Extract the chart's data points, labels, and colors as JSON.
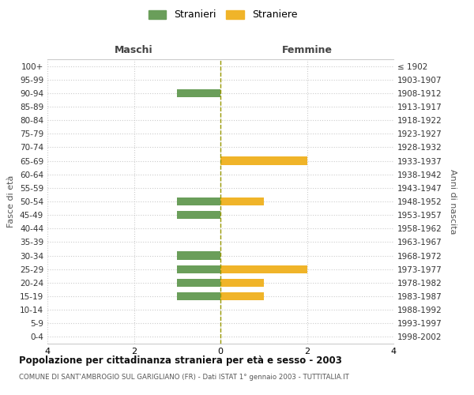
{
  "age_groups": [
    "100+",
    "95-99",
    "90-94",
    "85-89",
    "80-84",
    "75-79",
    "70-74",
    "65-69",
    "60-64",
    "55-59",
    "50-54",
    "45-49",
    "40-44",
    "35-39",
    "30-34",
    "25-29",
    "20-24",
    "15-19",
    "10-14",
    "5-9",
    "0-4"
  ],
  "birth_years": [
    "≤ 1902",
    "1903-1907",
    "1908-1912",
    "1913-1917",
    "1918-1922",
    "1923-1927",
    "1928-1932",
    "1933-1937",
    "1938-1942",
    "1943-1947",
    "1948-1952",
    "1953-1957",
    "1958-1962",
    "1963-1967",
    "1968-1972",
    "1973-1977",
    "1978-1982",
    "1983-1987",
    "1988-1992",
    "1993-1997",
    "1998-2002"
  ],
  "maschi_stranieri": [
    0,
    0,
    1,
    0,
    0,
    0,
    0,
    0,
    0,
    0,
    1,
    1,
    0,
    0,
    1,
    1,
    1,
    1,
    0,
    0,
    0
  ],
  "femmine_straniere": [
    0,
    0,
    0,
    0,
    0,
    0,
    0,
    2,
    0,
    0,
    1,
    0,
    0,
    0,
    0,
    2,
    1,
    1,
    0,
    0,
    0
  ],
  "color_stranieri": "#6a9e5a",
  "color_straniere": "#f0b429",
  "xlim": 4,
  "xlabel_left": "Maschi",
  "xlabel_right": "Femmine",
  "ylabel_left": "Fasce di età",
  "ylabel_right": "Anni di nascita",
  "title": "Popolazione per cittadinanza straniera per età e sesso - 2003",
  "subtitle": "COMUNE DI SANT'AMBROGIO SUL GARIGLIANO (FR) - Dati ISTAT 1° gennaio 2003 - TUTTITALIA.IT",
  "legend_stranieri": "Stranieri",
  "legend_straniere": "Straniere",
  "bg_color": "#ffffff",
  "grid_color": "#cccccc",
  "dashed_color": "#999900"
}
